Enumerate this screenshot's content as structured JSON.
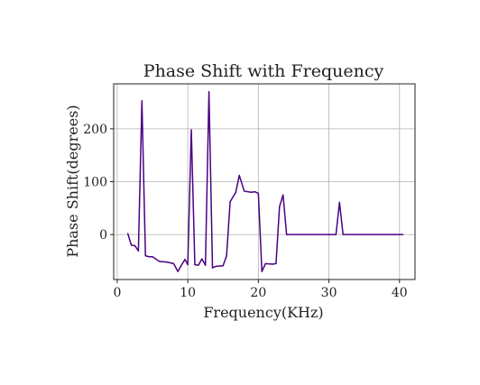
{
  "chart_data": {
    "type": "line",
    "title": "Phase Shift with Frequency",
    "xlabel": "Frequency(KHz)",
    "ylabel": "Phase Shift(degrees)",
    "xlim": [
      -0.5,
      42.2
    ],
    "ylim": [
      -85,
      285
    ],
    "xticks": [
      0,
      10,
      20,
      30,
      40
    ],
    "yticks": [
      0,
      100,
      200
    ],
    "grid": true,
    "series": [
      {
        "color": "#4b0082",
        "x": [
          1.5,
          2.0,
          2.5,
          3.0,
          3.5,
          4.0,
          4.5,
          5.0,
          6.0,
          7.0,
          8.0,
          8.6,
          9.0,
          9.6,
          10.0,
          10.5,
          11.0,
          11.5,
          12.0,
          12.5,
          13.0,
          13.5,
          14.0,
          15.0,
          15.5,
          16.0,
          16.8,
          17.3,
          18.0,
          19.0,
          19.5,
          20.0,
          20.5,
          21.0,
          22.0,
          22.5,
          23.0,
          23.5,
          24.0,
          30.0,
          31.0,
          31.5,
          32.0,
          40.5
        ],
        "y": [
          2,
          -20,
          -21,
          -31,
          253,
          -40,
          -42,
          -42,
          -51,
          -52,
          -55,
          -70,
          -60,
          -47,
          -57,
          198,
          -57,
          -58,
          -46,
          -58,
          270,
          -63,
          -60,
          -59,
          -40,
          62,
          80,
          112,
          82,
          80,
          81,
          78,
          -70,
          -55,
          -56,
          -55,
          53,
          75,
          0,
          0,
          0,
          61,
          0,
          0
        ]
      }
    ]
  }
}
